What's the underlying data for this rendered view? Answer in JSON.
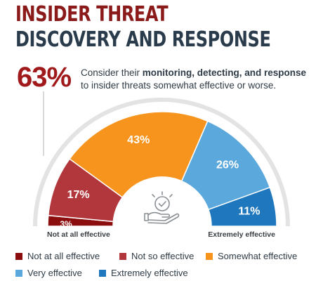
{
  "header": {
    "title_line1": "INSIDER THREAT",
    "title_line2": "DISCOVERY AND RESPONSE"
  },
  "stat": {
    "value": "63%",
    "text_prefix": "Consider their ",
    "text_bold": "monitoring, detecting, and response",
    "text_suffix": "to insider threats somewhat effective or worse."
  },
  "chart_data": {
    "type": "pie",
    "subtype": "semicircle",
    "categories": [
      "Not at all effective",
      "Not so effective",
      "Somewhat effective",
      "Very effective",
      "Extremely effective"
    ],
    "values": [
      3,
      17,
      43,
      26,
      11
    ],
    "labels": [
      "3%",
      "17%",
      "43%",
      "26%",
      "11%"
    ],
    "colors": [
      "#8b0d0d",
      "#b2373c",
      "#f7941d",
      "#5ba8dc",
      "#1f78bd"
    ],
    "range_left_label": "Not at all effective",
    "range_right_label": "Extremely effective",
    "center_icon": "hand-holding-checkmark-badge-icon",
    "legend_position": "bottom"
  }
}
